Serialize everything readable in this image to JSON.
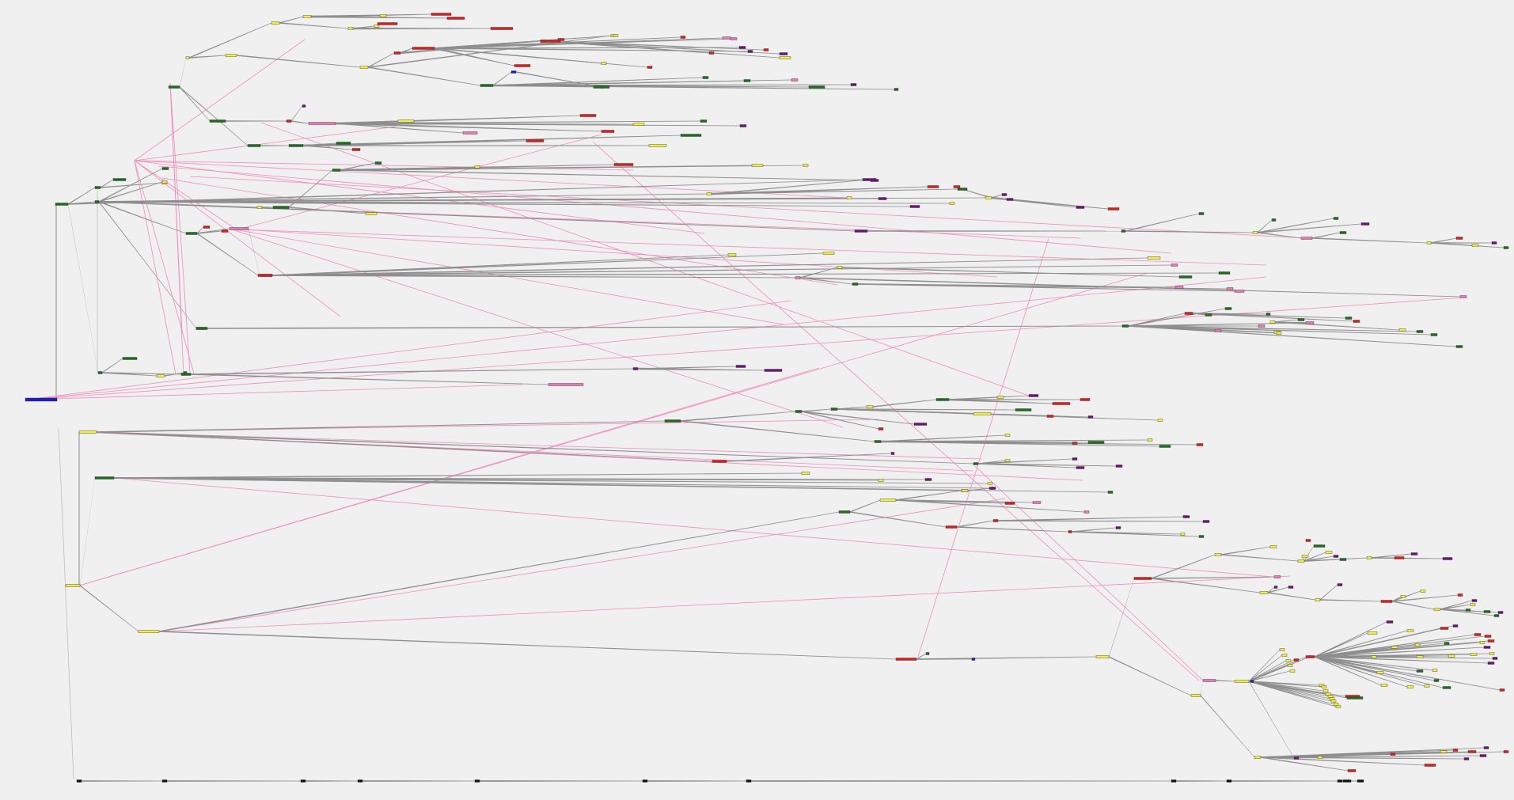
{
  "view": {
    "type": "tree-visualization",
    "background": "#f0f0f0"
  },
  "palette": {
    "yellow": "#f5f03a",
    "green": "#1e6e1e",
    "red": "#dd1c1c",
    "pink": "#ec78bc",
    "purple": "#6e1278",
    "blue": "#1c1cc8",
    "black": "#111111",
    "edge": "#8a8a8a",
    "cross_link": "#f08cbc"
  }
}
